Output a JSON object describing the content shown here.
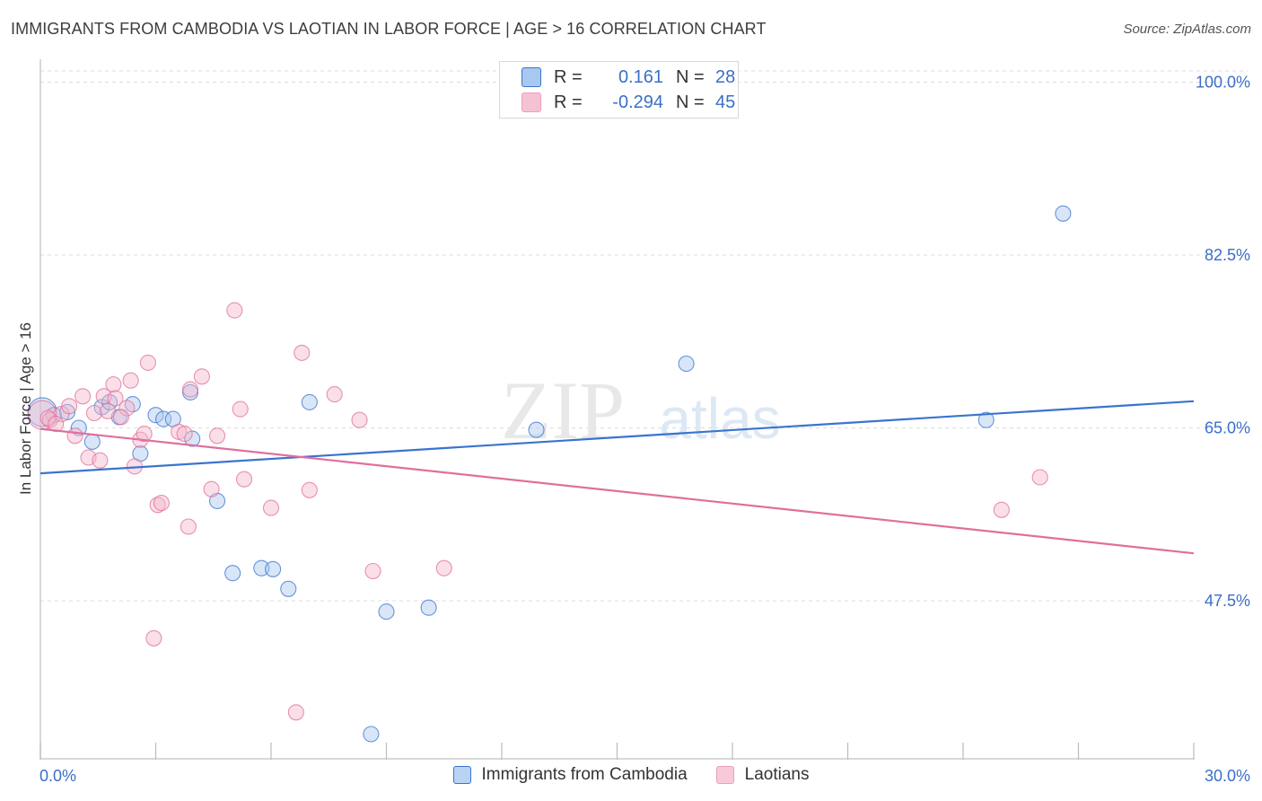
{
  "title": "IMMIGRANTS FROM CAMBODIA VS LAOTIAN IN LABOR FORCE | AGE > 16 CORRELATION CHART",
  "source": "Source: ZipAtlas.com",
  "watermark": {
    "zip": "ZIP",
    "atlas": "atlas"
  },
  "colors": {
    "blue": "#3a74cf",
    "blue_fill": "#a9c8f0",
    "pink": "#e06f9c",
    "pink_fill": "#f5b8cd",
    "tick_label": "#3a6fc7"
  },
  "stats": [
    {
      "r_label": "R =",
      "r_value": "0.161",
      "n_label": "N =",
      "n_value": "28"
    },
    {
      "r_label": "R =",
      "r_value": "-0.294",
      "n_label": "N =",
      "n_value": "45"
    }
  ],
  "legend": [
    {
      "label": "Immigrants from Cambodia"
    },
    {
      "label": "Laotians"
    }
  ],
  "chart_data": {
    "type": "scatter",
    "xlabel": "",
    "ylabel": "In Labor Force | Age > 16",
    "xlim": [
      0,
      30
    ],
    "ylim": [
      31.5,
      101.5
    ],
    "x_tick_labels": [
      {
        "value": 0,
        "label": "0.0%"
      },
      {
        "value": 30,
        "label": "30.0%"
      }
    ],
    "y_tick_labels": [
      {
        "value": 47.5,
        "label": "47.5%"
      },
      {
        "value": 65.0,
        "label": "65.0%"
      },
      {
        "value": 82.5,
        "label": "82.5%"
      },
      {
        "value": 100.0,
        "label": "100.0%"
      }
    ],
    "x_minor_ticks": [
      0,
      3,
      6,
      9,
      12,
      15,
      18,
      21,
      24,
      27,
      30
    ],
    "series": [
      {
        "name": "Immigrants from Cambodia",
        "color": "blue",
        "trend": {
          "x": [
            0,
            30
          ],
          "y": [
            60.4,
            67.7
          ]
        },
        "points": [
          {
            "x": 0.05,
            "y": 66.6,
            "big": true
          },
          {
            "x": 0.35,
            "y": 66.3
          },
          {
            "x": 0.7,
            "y": 66.6
          },
          {
            "x": 1.0,
            "y": 65.0
          },
          {
            "x": 1.35,
            "y": 63.6
          },
          {
            "x": 1.6,
            "y": 67.1
          },
          {
            "x": 1.8,
            "y": 67.6
          },
          {
            "x": 2.05,
            "y": 66.1
          },
          {
            "x": 2.4,
            "y": 67.4
          },
          {
            "x": 2.6,
            "y": 62.4
          },
          {
            "x": 3.0,
            "y": 66.3
          },
          {
            "x": 3.2,
            "y": 65.9
          },
          {
            "x": 3.45,
            "y": 65.9
          },
          {
            "x": 3.9,
            "y": 68.6
          },
          {
            "x": 3.95,
            "y": 63.9
          },
          {
            "x": 4.6,
            "y": 57.6
          },
          {
            "x": 5.0,
            "y": 50.3
          },
          {
            "x": 5.75,
            "y": 50.8
          },
          {
            "x": 6.05,
            "y": 50.7
          },
          {
            "x": 6.45,
            "y": 48.7
          },
          {
            "x": 7.0,
            "y": 67.6
          },
          {
            "x": 8.6,
            "y": 34.0
          },
          {
            "x": 9.0,
            "y": 46.4
          },
          {
            "x": 10.1,
            "y": 46.8
          },
          {
            "x": 12.9,
            "y": 64.8
          },
          {
            "x": 16.8,
            "y": 71.5
          },
          {
            "x": 24.6,
            "y": 65.8
          },
          {
            "x": 26.6,
            "y": 86.7
          }
        ]
      },
      {
        "name": "Laotians",
        "color": "pink",
        "trend": {
          "x": [
            0,
            30
          ],
          "y": [
            64.9,
            52.3
          ]
        },
        "points": [
          {
            "x": 0.05,
            "y": 66.3,
            "big": true
          },
          {
            "x": 0.25,
            "y": 65.8
          },
          {
            "x": 0.55,
            "y": 66.4
          },
          {
            "x": 0.75,
            "y": 67.2
          },
          {
            "x": 0.9,
            "y": 64.2
          },
          {
            "x": 1.1,
            "y": 68.2
          },
          {
            "x": 1.25,
            "y": 62.0
          },
          {
            "x": 1.4,
            "y": 66.5
          },
          {
            "x": 1.55,
            "y": 61.7
          },
          {
            "x": 1.65,
            "y": 68.2
          },
          {
            "x": 1.9,
            "y": 69.4
          },
          {
            "x": 1.95,
            "y": 68.0
          },
          {
            "x": 2.25,
            "y": 67.0
          },
          {
            "x": 2.35,
            "y": 69.8
          },
          {
            "x": 2.45,
            "y": 61.1
          },
          {
            "x": 2.6,
            "y": 63.8
          },
          {
            "x": 2.7,
            "y": 64.4
          },
          {
            "x": 2.8,
            "y": 71.6
          },
          {
            "x": 3.05,
            "y": 57.2
          },
          {
            "x": 3.15,
            "y": 57.4
          },
          {
            "x": 3.6,
            "y": 64.6
          },
          {
            "x": 3.75,
            "y": 64.4
          },
          {
            "x": 3.85,
            "y": 55.0
          },
          {
            "x": 3.9,
            "y": 68.9
          },
          {
            "x": 4.2,
            "y": 70.2
          },
          {
            "x": 4.45,
            "y": 58.8
          },
          {
            "x": 4.6,
            "y": 64.2
          },
          {
            "x": 2.95,
            "y": 43.7
          },
          {
            "x": 5.05,
            "y": 76.9
          },
          {
            "x": 5.2,
            "y": 66.9
          },
          {
            "x": 5.3,
            "y": 59.8
          },
          {
            "x": 6.0,
            "y": 56.9
          },
          {
            "x": 6.65,
            "y": 36.2
          },
          {
            "x": 6.8,
            "y": 72.6
          },
          {
            "x": 7.0,
            "y": 58.7
          },
          {
            "x": 7.65,
            "y": 68.4
          },
          {
            "x": 8.3,
            "y": 65.8
          },
          {
            "x": 8.65,
            "y": 50.5
          },
          {
            "x": 10.5,
            "y": 50.8
          },
          {
            "x": 25.0,
            "y": 56.7
          },
          {
            "x": 26.0,
            "y": 60.0
          },
          {
            "x": 0.2,
            "y": 66.0
          },
          {
            "x": 0.4,
            "y": 65.4
          },
          {
            "x": 1.75,
            "y": 66.7
          },
          {
            "x": 2.1,
            "y": 66.1
          }
        ]
      }
    ]
  }
}
